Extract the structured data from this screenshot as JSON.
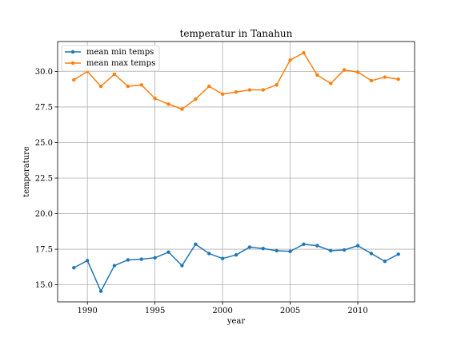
{
  "chart_data": {
    "type": "line",
    "title": "temperatur in Tanahun",
    "xlabel": "year",
    "ylabel": "temperature",
    "xlim": [
      1987.8,
      2014.2
    ],
    "ylim": [
      13.8,
      32.1
    ],
    "x_ticks": [
      1990,
      1995,
      2000,
      2005,
      2010
    ],
    "y_ticks": [
      15.0,
      17.5,
      20.0,
      22.5,
      25.0,
      27.5,
      30.0
    ],
    "y_tick_labels": [
      "15.0",
      "17.5",
      "20.0",
      "22.5",
      "25.0",
      "27.5",
      "30.0"
    ],
    "grid": true,
    "legend_position": "top-left",
    "x": [
      1989,
      1990,
      1991,
      1992,
      1993,
      1994,
      1995,
      1996,
      1997,
      1998,
      1999,
      2000,
      2001,
      2002,
      2003,
      2004,
      2005,
      2006,
      2007,
      2008,
      2009,
      2010,
      2011,
      2012,
      2013
    ],
    "series": [
      {
        "name": "mean min temps",
        "color": "#1f77b4",
        "values": [
          16.2,
          16.7,
          14.55,
          16.35,
          16.75,
          16.8,
          16.9,
          17.3,
          16.35,
          17.85,
          17.2,
          16.85,
          17.1,
          17.65,
          17.55,
          17.4,
          17.35,
          17.85,
          17.75,
          17.4,
          17.45,
          17.75,
          17.2,
          16.65,
          17.15
        ]
      },
      {
        "name": "mean max temps",
        "color": "#ff7f0e",
        "values": [
          29.4,
          30.0,
          28.95,
          29.8,
          28.95,
          29.05,
          28.1,
          27.7,
          27.35,
          28.05,
          28.95,
          28.4,
          28.55,
          28.7,
          28.7,
          29.05,
          30.8,
          31.3,
          29.75,
          29.15,
          30.1,
          29.95,
          29.35,
          29.6,
          29.45
        ]
      }
    ]
  }
}
